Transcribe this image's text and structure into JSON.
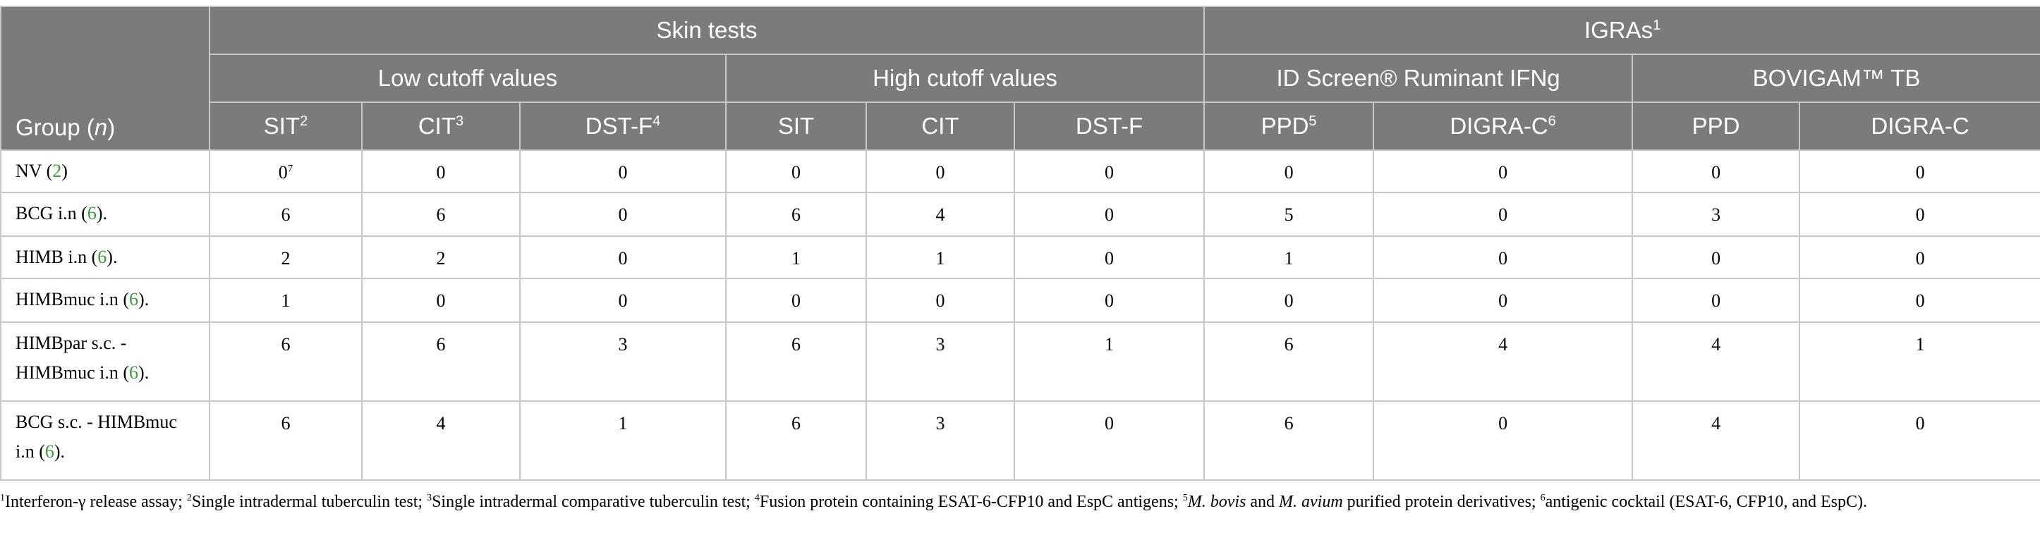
{
  "header": {
    "group_label": "Group (",
    "group_n": "n",
    "group_close": ")",
    "skin_tests": "Skin tests",
    "igras": "IGRAs",
    "igras_sup": "1",
    "low_cutoff": "Low cutoff values",
    "high_cutoff": "High cutoff values",
    "id_screen": "ID Screen® Ruminant IFNg",
    "bovigam": "BOVIGAM™ TB",
    "cols": [
      {
        "label": "SIT",
        "sup": "2"
      },
      {
        "label": "CIT",
        "sup": "3"
      },
      {
        "label": "DST-F",
        "sup": "4"
      },
      {
        "label": "SIT",
        "sup": ""
      },
      {
        "label": "CIT",
        "sup": ""
      },
      {
        "label": "DST-F",
        "sup": ""
      },
      {
        "label": "PPD",
        "sup": "5"
      },
      {
        "label": "DIGRA-C",
        "sup": "6"
      },
      {
        "label": "PPD",
        "sup": ""
      },
      {
        "label": "DIGRA-C",
        "sup": ""
      }
    ]
  },
  "rows": [
    {
      "group_a": "NV (",
      "n": "2",
      "group_b": ")",
      "group_c": "",
      "values": [
        "0",
        "0",
        "0",
        "0",
        "0",
        "0",
        "0",
        "0",
        "0",
        "0"
      ],
      "first_sup": "7"
    },
    {
      "group_a": "BCG i.n (",
      "n": "6",
      "group_b": ").",
      "group_c": "",
      "values": [
        "6",
        "6",
        "0",
        "6",
        "4",
        "0",
        "5",
        "0",
        "3",
        "0"
      ],
      "first_sup": ""
    },
    {
      "group_a": "HIMB i.n (",
      "n": "6",
      "group_b": ").",
      "group_c": "",
      "values": [
        "2",
        "2",
        "0",
        "1",
        "1",
        "0",
        "1",
        "0",
        "0",
        "0"
      ],
      "first_sup": ""
    },
    {
      "group_a": "HIMBmuc i.n (",
      "n": "6",
      "group_b": ").",
      "group_c": "",
      "values": [
        "1",
        "0",
        "0",
        "0",
        "0",
        "0",
        "0",
        "0",
        "0",
        "0"
      ],
      "first_sup": ""
    },
    {
      "group_a": "HIMBpar s.c. -",
      "group_c": "HIMBmuc i.n (",
      "n": "6",
      "group_b": ").",
      "values": [
        "6",
        "6",
        "3",
        "6",
        "3",
        "1",
        "6",
        "4",
        "4",
        "1"
      ],
      "first_sup": ""
    },
    {
      "group_a": "BCG s.c. - HIMBmuc",
      "group_c": "i.n (",
      "n": "6",
      "group_b": ").",
      "values": [
        "6",
        "4",
        "1",
        "6",
        "3",
        "0",
        "6",
        "0",
        "4",
        "0"
      ],
      "first_sup": ""
    }
  ],
  "footnote": {
    "s1": "1",
    "t1": "Interferon-γ release assay; ",
    "s2": "2",
    "t2": "Single intradermal tuberculin test; ",
    "s3": "3",
    "t3": "Single intradermal comparative tuberculin test; ",
    "s4": "4",
    "t4": "Fusion protein containing ESAT-6-CFP10 and EspC antigens; ",
    "s5": "5",
    "i1": "M. bovis",
    "t5": " and ",
    "i2": "M. avium",
    "t6": " purified protein derivatives; ",
    "s6": "6",
    "t7": "antigenic cocktail (ESAT-6, CFP10, and EspC)."
  }
}
